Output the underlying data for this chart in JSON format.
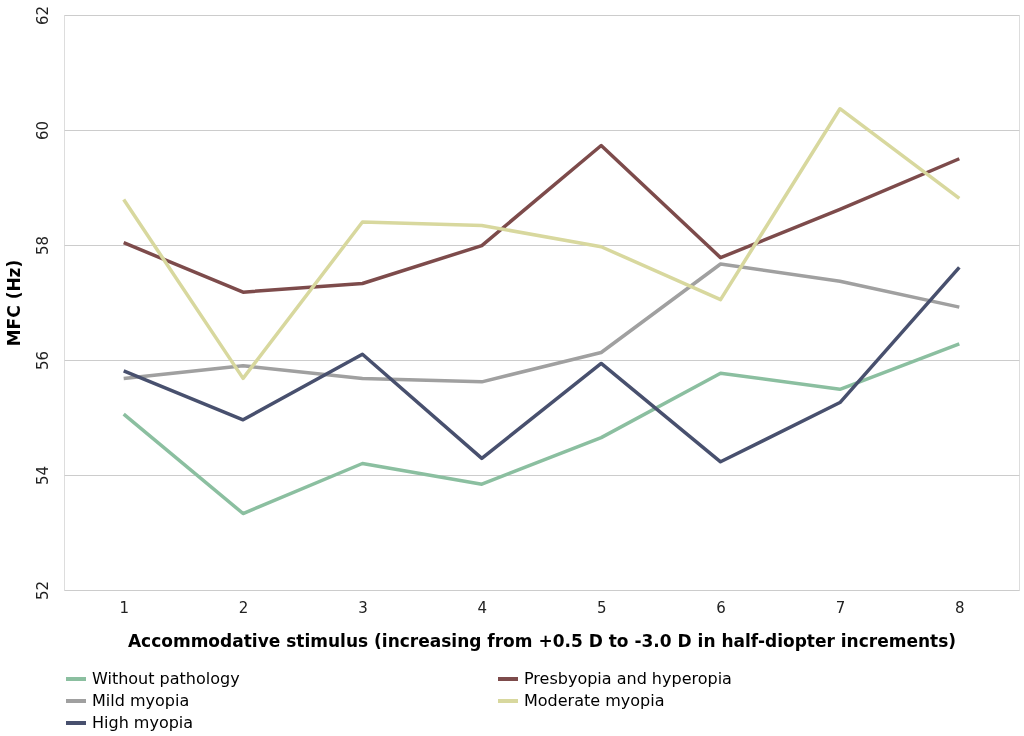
{
  "chart_data": {
    "type": "line",
    "xlabel": "Accommodative stimulus (increasing from +0.5 D to -3.0 D in half-diopter increments)",
    "ylabel": "MFC (Hz)",
    "categories": [
      "1",
      "2",
      "3",
      "4",
      "5",
      "6",
      "7",
      "8"
    ],
    "series": [
      {
        "name": "Without pathology",
        "color": "#8bbfa0",
        "values": [
          55.06,
          53.33,
          54.2,
          53.84,
          54.65,
          55.77,
          55.49,
          56.28
        ]
      },
      {
        "name": "Presbyopia and hyperopia",
        "color": "#7d4b4b",
        "values": [
          58.04,
          57.18,
          57.33,
          57.99,
          59.73,
          57.78,
          58.62,
          59.5
        ]
      },
      {
        "name": "Mild myopia",
        "color": "#a0a0a0",
        "values": [
          55.68,
          55.9,
          55.68,
          55.62,
          56.13,
          57.67,
          57.37,
          56.92
        ]
      },
      {
        "name": "Moderate myopia",
        "color": "#d8d89e",
        "values": [
          58.79,
          55.68,
          58.4,
          58.34,
          57.97,
          57.05,
          60.37,
          58.81
        ]
      },
      {
        "name": "High myopia",
        "color": "#48506e",
        "values": [
          55.81,
          54.96,
          56.1,
          54.29,
          55.94,
          54.23,
          55.26,
          57.61
        ]
      }
    ],
    "ylim": [
      52,
      62
    ],
    "yticks": [
      52,
      54,
      56,
      58,
      60,
      62
    ],
    "grid": "y",
    "legend": "bottom",
    "marker": "none",
    "line_style": "solid"
  }
}
